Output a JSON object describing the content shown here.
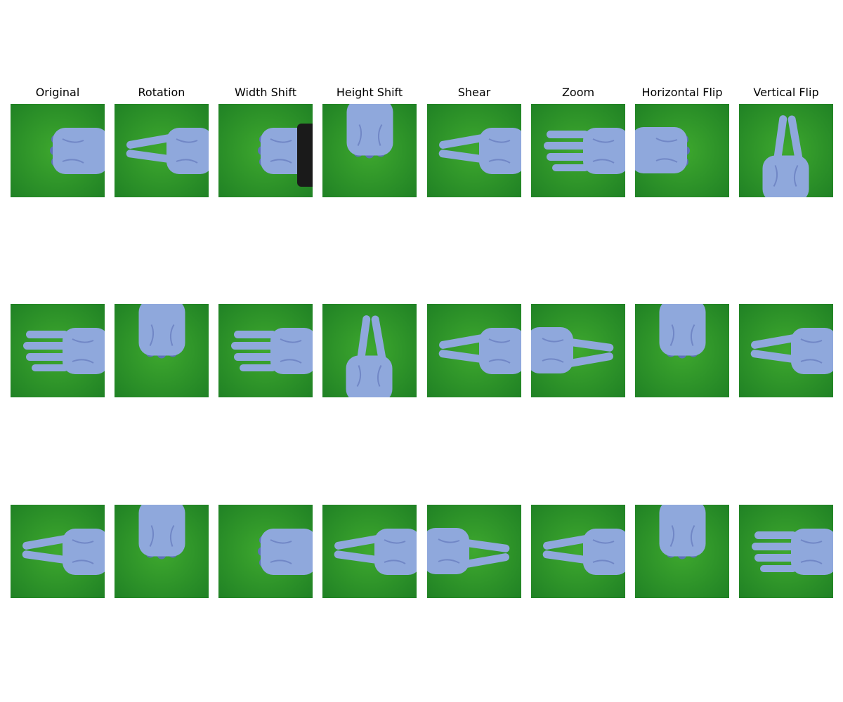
{
  "figure": {
    "titles": [
      "Original",
      "Rotation",
      "Width Shift",
      "Height Shift",
      "Shear",
      "Zoom",
      "Horizontal Flip",
      "Vertical Flip"
    ]
  },
  "colors": {
    "background_green": "#3ea82e",
    "background_green_dark": "#1e7f24",
    "hand_blue": "#8fa8dc",
    "hand_blue_shadow": "#5e72b8",
    "sleeve_black": "#1a1a1a",
    "page_background": "#ffffff"
  },
  "grid": {
    "rows": [
      [
        {
          "gesture": "rock",
          "dir": "left",
          "sleeve": false
        },
        {
          "gesture": "scissors",
          "dir": "left",
          "sleeve": false
        },
        {
          "gesture": "rock",
          "dir": "left",
          "sleeve": true
        },
        {
          "gesture": "rock",
          "dir": "down",
          "sleeve": false
        },
        {
          "gesture": "scissors",
          "dir": "left",
          "sleeve": false
        },
        {
          "gesture": "paper",
          "dir": "left",
          "sleeve": false
        },
        {
          "gesture": "rock",
          "dir": "right",
          "sleeve": false
        },
        {
          "gesture": "scissors",
          "dir": "up",
          "sleeve": false
        }
      ],
      [
        {
          "gesture": "paper",
          "dir": "left",
          "sleeve": false
        },
        {
          "gesture": "rock",
          "dir": "down",
          "sleeve": false
        },
        {
          "gesture": "paper",
          "dir": "left",
          "sleeve": false
        },
        {
          "gesture": "scissors",
          "dir": "up",
          "sleeve": false
        },
        {
          "gesture": "scissors",
          "dir": "left",
          "sleeve": false
        },
        {
          "gesture": "scissors",
          "dir": "right",
          "sleeve": false
        },
        {
          "gesture": "rock",
          "dir": "down",
          "sleeve": false
        },
        {
          "gesture": "scissors",
          "dir": "left",
          "sleeve": false
        }
      ],
      [
        {
          "gesture": "scissors",
          "dir": "left",
          "sleeve": false
        },
        {
          "gesture": "rock",
          "dir": "down",
          "sleeve": false
        },
        {
          "gesture": "rock",
          "dir": "left",
          "sleeve": false
        },
        {
          "gesture": "scissors",
          "dir": "left",
          "sleeve": false
        },
        {
          "gesture": "scissors",
          "dir": "right",
          "sleeve": false
        },
        {
          "gesture": "scissors",
          "dir": "left",
          "sleeve": false
        },
        {
          "gesture": "rock",
          "dir": "down",
          "sleeve": false
        },
        {
          "gesture": "paper",
          "dir": "left",
          "sleeve": false
        }
      ]
    ]
  }
}
